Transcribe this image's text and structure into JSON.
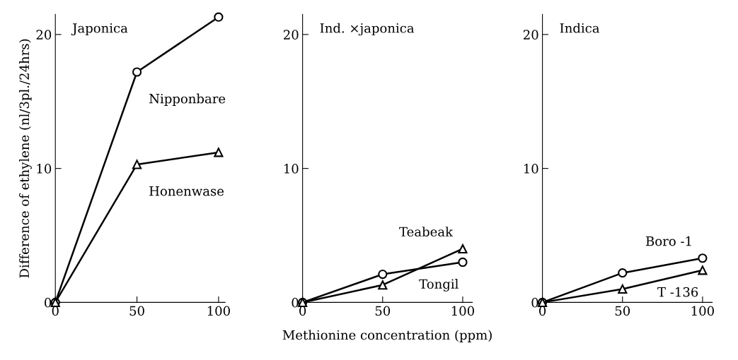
{
  "chart_data": [
    {
      "type": "line",
      "title": "Japonica",
      "ylabel": "Difference of ethylene (nl/3pl./24hrs)",
      "x": [
        0,
        50,
        100
      ],
      "xlim": [
        0,
        104
      ],
      "xticks": [
        0,
        50,
        100
      ],
      "ylim": [
        0,
        21.5
      ],
      "yticks": [
        0,
        10,
        20
      ],
      "grid": false,
      "series": [
        {
          "name": "Nipponbare",
          "color": "#000000",
          "marker": "circle",
          "values": [
            0,
            17.2,
            21.3
          ]
        },
        {
          "name": "Honenwase",
          "color": "#000000",
          "marker": "triangle",
          "values": [
            0,
            10.3,
            11.2
          ]
        }
      ]
    },
    {
      "type": "line",
      "title": "Ind. ×japonica",
      "xlabel": "Methionine concentration (ppm)",
      "x": [
        0,
        50,
        100
      ],
      "xlim": [
        0,
        106
      ],
      "xticks": [
        0,
        50,
        100
      ],
      "ylim": [
        0,
        21.5
      ],
      "yticks": [
        0,
        10,
        20
      ],
      "grid": false,
      "series": [
        {
          "name": "Tongil",
          "color": "#000000",
          "marker": "circle",
          "values": [
            0,
            2.1,
            3.0
          ]
        },
        {
          "name": "Teabeak",
          "color": "#000000",
          "marker": "triangle",
          "values": [
            0,
            1.3,
            4.0
          ]
        }
      ]
    },
    {
      "type": "line",
      "title": "Indica",
      "x": [
        0,
        50,
        100
      ],
      "xlim": [
        0,
        106
      ],
      "xticks": [
        0,
        50,
        100
      ],
      "ylim": [
        0,
        21.5
      ],
      "yticks": [
        0,
        10,
        20
      ],
      "grid": false,
      "series": [
        {
          "name": "Boro -1",
          "color": "#000000",
          "marker": "circle",
          "values": [
            0,
            2.2,
            3.3
          ]
        },
        {
          "name": "T -136",
          "color": "#000000",
          "marker": "triangle",
          "values": [
            0,
            1.0,
            2.4
          ]
        }
      ]
    }
  ]
}
